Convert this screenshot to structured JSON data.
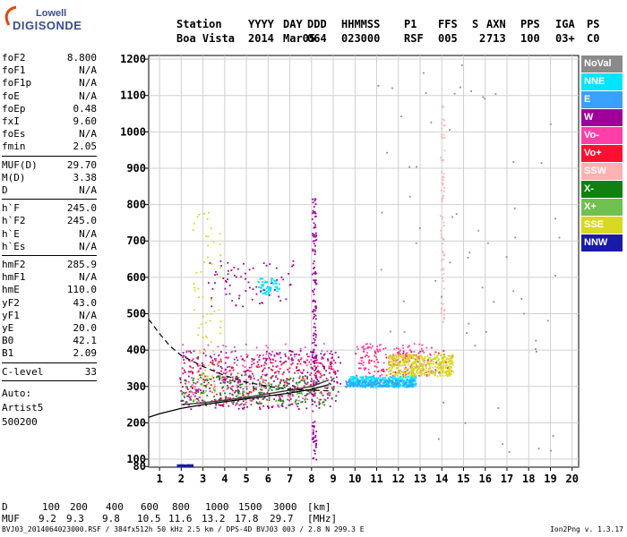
{
  "logo": {
    "line1": "Lowell",
    "line2": "DIGISONDE"
  },
  "header": {
    "labels": [
      "Station",
      "YYYY",
      "DAY",
      "DDD",
      "HHMMSS",
      "P1",
      "FFS",
      "S",
      "AXN",
      "PPS",
      "IGA",
      "PS"
    ],
    "values": [
      "Boa Vista",
      "2014",
      "Mar05",
      "064",
      "023000",
      "RSF",
      "005",
      "2",
      "713",
      "100",
      "03+",
      "C0"
    ]
  },
  "params_group1": [
    {
      "name": "foF2",
      "value": "8.800"
    },
    {
      "name": "foF1",
      "value": "N/A"
    },
    {
      "name": "foF1p",
      "value": "N/A"
    },
    {
      "name": "foE",
      "value": "N/A"
    },
    {
      "name": "foEp",
      "value": "0.48"
    },
    {
      "name": "fxI",
      "value": "9.60"
    },
    {
      "name": "foEs",
      "value": "N/A"
    },
    {
      "name": "fmin",
      "value": "2.05"
    }
  ],
  "params_group2": [
    {
      "name": "MUF(D)",
      "value": "29.70"
    },
    {
      "name": "M(D)",
      "value": "3.38"
    },
    {
      "name": "D",
      "value": "N/A"
    }
  ],
  "params_group3": [
    {
      "name": "h`F",
      "value": "245.0"
    },
    {
      "name": "h`F2",
      "value": "245.0"
    },
    {
      "name": "h`E",
      "value": "N/A"
    },
    {
      "name": "h`Es",
      "value": "N/A"
    }
  ],
  "params_group4": [
    {
      "name": "hmF2",
      "value": "285.9"
    },
    {
      "name": "hmF1",
      "value": "N/A"
    },
    {
      "name": "hmE",
      "value": "110.0"
    },
    {
      "name": "yF2",
      "value": "43.0"
    },
    {
      "name": "yF1",
      "value": "N/A"
    },
    {
      "name": "yE",
      "value": "20.0"
    },
    {
      "name": "B0",
      "value": "42.1"
    },
    {
      "name": "B1",
      "value": "2.09"
    }
  ],
  "params_group5": [
    {
      "name": "C-level",
      "value": "33"
    }
  ],
  "auto_info": [
    "Auto:",
    "Artist5",
    "500200"
  ],
  "legend": [
    {
      "label": "NoVal",
      "color": "#8a8a8a"
    },
    {
      "label": "NNE",
      "color": "#00e5ff"
    },
    {
      "label": "E",
      "color": "#3aa0ff"
    },
    {
      "label": "W",
      "color": "#a0009a"
    },
    {
      "label": "Vo-",
      "color": "#ff3fa8"
    },
    {
      "label": "Vo+",
      "color": "#ff1030"
    },
    {
      "label": "SSW",
      "color": "#ffb0b0"
    },
    {
      "label": "X-",
      "color": "#108010"
    },
    {
      "label": "X+",
      "color": "#70c050"
    },
    {
      "label": "SSE",
      "color": "#d8d820"
    },
    {
      "label": "NNW",
      "color": "#1a1aa8"
    }
  ],
  "muf_table": {
    "d_label": "D",
    "d_values": [
      "100",
      "200",
      "400",
      "600",
      "800",
      "1000",
      "1500",
      "3000"
    ],
    "d_unit": "[km]",
    "muf_label": "MUF",
    "muf_values": [
      "9.2",
      "9.3",
      "9.8",
      "10.5",
      "11.6",
      "13.2",
      "17.8",
      "29.7"
    ],
    "muf_unit": "[MHz]"
  },
  "footer": "BVJ03_2014064023000.RSF / 384fx512h 50 kHz 2.5 km / DPS-4D BVJ03 003 / 2.8 N 299.3 E",
  "version": "Ion2Png v. 1.3.17",
  "chart_data": {
    "type": "scatter",
    "title": "",
    "xlabel": "",
    "ylabel": "",
    "xlim": [
      0.5,
      20.3
    ],
    "ylim": [
      78,
      1210
    ],
    "x_ticks": [
      1,
      2,
      3,
      4,
      5,
      6,
      7,
      8,
      9,
      10,
      11,
      12,
      13,
      14,
      15,
      16,
      17,
      18,
      19,
      20
    ],
    "y_ticks": [
      80,
      100,
      200,
      300,
      400,
      500,
      600,
      700,
      800,
      900,
      1000,
      1100,
      1200
    ],
    "grid": true,
    "series": [
      {
        "name": "NNE",
        "clusters": [
          {
            "x": [
              9.7,
              12.8
            ],
            "y": [
              300,
              330
            ],
            "density": "high"
          },
          {
            "x": [
              5.5,
              6.5
            ],
            "y": [
              555,
              600
            ],
            "density": "low"
          }
        ]
      },
      {
        "name": "W",
        "clusters": [
          {
            "x": [
              1.9,
              9.3
            ],
            "y": [
              240,
              400
            ],
            "density": "high"
          },
          {
            "x": [
              3.2,
              7.2
            ],
            "y": [
              520,
              650
            ],
            "density": "low"
          },
          {
            "x": [
              8.0,
              8.2
            ],
            "y": [
              90,
              820
            ],
            "density": "medium"
          }
        ]
      },
      {
        "name": "Vo-",
        "clusters": [
          {
            "x": [
              2.0,
              9.0
            ],
            "y": [
              245,
              420
            ],
            "density": "medium"
          },
          {
            "x": [
              10.0,
              13.5
            ],
            "y": [
              330,
              420
            ],
            "density": "medium"
          }
        ]
      },
      {
        "name": "Vo+",
        "clusters": [
          {
            "x": [
              2.0,
              9.0
            ],
            "y": [
              250,
              380
            ],
            "density": "medium"
          },
          {
            "x": [
              10.0,
              14.5
            ],
            "y": [
              340,
              400
            ],
            "density": "low"
          }
        ]
      },
      {
        "name": "SSW",
        "clusters": [
          {
            "x": [
              13.9,
              14.1
            ],
            "y": [
              480,
              1080
            ],
            "density": "low"
          }
        ]
      },
      {
        "name": "X-",
        "clusters": [
          {
            "x": [
              2.0,
              9.0
            ],
            "y": [
              250,
              330
            ],
            "density": "medium"
          }
        ]
      },
      {
        "name": "X+",
        "clusters": [
          {
            "x": [
              2.0,
              9.0
            ],
            "y": [
              255,
              340
            ],
            "density": "low"
          }
        ]
      },
      {
        "name": "SSE",
        "clusters": [
          {
            "x": [
              11.5,
              14.5
            ],
            "y": [
              330,
              390
            ],
            "density": "high"
          },
          {
            "x": [
              2.5,
              3.8
            ],
            "y": [
              250,
              800
            ],
            "density": "low"
          }
        ]
      },
      {
        "name": "E",
        "clusters": [
          {
            "x": [
              9.5,
              12.7
            ],
            "y": [
              300,
              320
            ],
            "density": "medium"
          }
        ]
      },
      {
        "name": "NNW",
        "clusters": [
          {
            "x": [
              1.8,
              2.5
            ],
            "y": [
              82,
              86
            ],
            "density": "medium"
          }
        ]
      },
      {
        "name": "NoVal",
        "clusters": [
          {
            "x": [
              11.0,
              19.5
            ],
            "y": [
              100,
              1200
            ],
            "density": "low"
          }
        ]
      }
    ],
    "profile_solid": {
      "x": [
        0.5,
        1,
        2,
        3,
        4,
        5,
        6,
        7,
        8,
        8.8
      ],
      "y": [
        215,
        225,
        240,
        250,
        258,
        266,
        274,
        282,
        292,
        305
      ]
    },
    "profile_dashed": {
      "x": [
        0.5,
        1,
        1.5,
        2,
        3,
        4,
        5,
        6,
        7,
        8,
        8.8
      ],
      "y": [
        485,
        445,
        410,
        385,
        355,
        330,
        312,
        300,
        292,
        290,
        288
      ]
    },
    "trace_dark": {
      "x": [
        2,
        3,
        4,
        5,
        6,
        7,
        8,
        8.8
      ],
      "y": [
        250,
        255,
        262,
        270,
        280,
        290,
        300,
        318
      ]
    }
  }
}
